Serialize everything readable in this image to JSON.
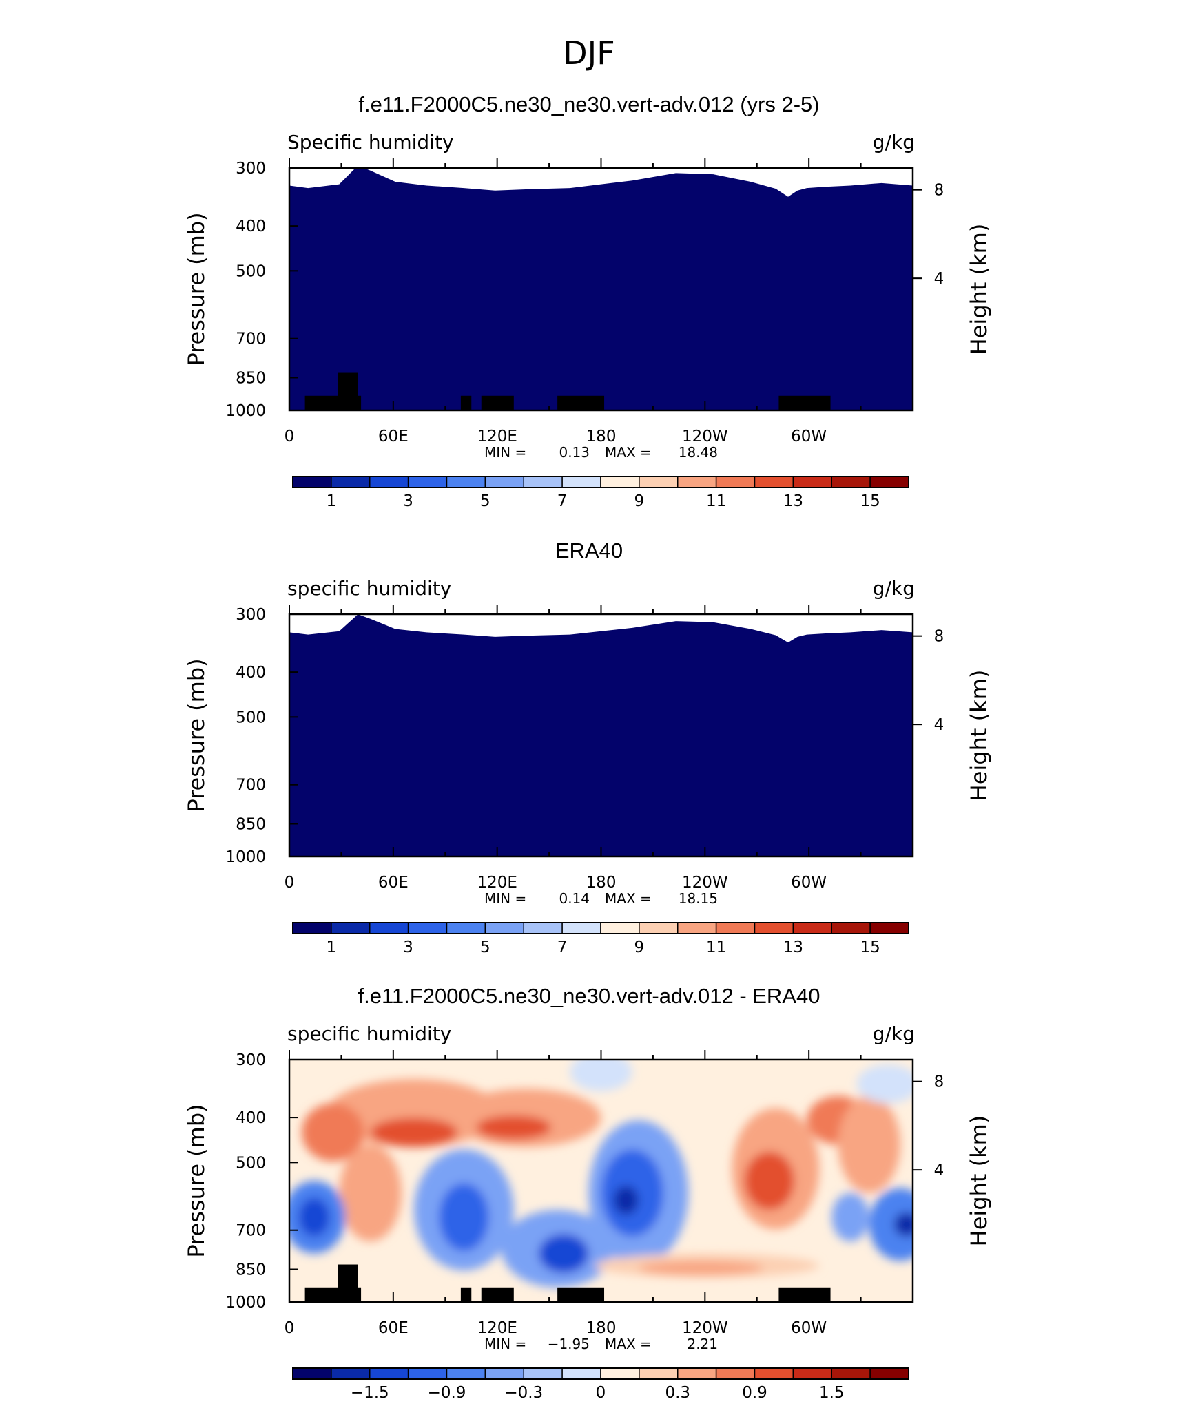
{
  "figure": {
    "title": "DJF"
  },
  "panels": [
    {
      "title": "f.e11.F2000C5.ne30_ne30.vert-adv.012 (yrs 2-5)",
      "variable": "Specific humidity",
      "units": "g/kg",
      "stats": {
        "min_label": "MIN =",
        "min": "0.13",
        "max_label": "MAX =",
        "max": "18.48"
      },
      "colorbar_labels": [
        "1",
        "3",
        "5",
        "7",
        "9",
        "11",
        "13",
        "15"
      ],
      "palette": "sequential",
      "terrain": true
    },
    {
      "title": "ERA40",
      "variable": "specific humidity",
      "units": "g/kg",
      "stats": {
        "min_label": "MIN =",
        "min": "0.14",
        "max_label": "MAX =",
        "max": "18.15"
      },
      "colorbar_labels": [
        "1",
        "3",
        "5",
        "7",
        "9",
        "11",
        "13",
        "15"
      ],
      "palette": "sequential",
      "terrain": false
    },
    {
      "title": "f.e11.F2000C5.ne30_ne30.vert-adv.012 - ERA40",
      "variable": "specific humidity",
      "units": "g/kg",
      "stats": {
        "min_label": "MIN =",
        "min": "−1.95",
        "max_label": "MAX =",
        "max": "2.21"
      },
      "colorbar_labels": [
        "−1.5",
        "−0.9",
        "−0.3",
        "0",
        "0.3",
        "0.9",
        "1.5"
      ],
      "palette": "diverging",
      "terrain": true
    }
  ],
  "axes": {
    "ylabel_left": "Pressure (mb)",
    "ylabel_right": "Height (km)",
    "pressure_ticks": [
      "300",
      "400",
      "500",
      "700",
      "850",
      "1000"
    ],
    "height_ticks": [
      "8",
      "4"
    ],
    "lon_ticks": [
      "0",
      "60E",
      "120E",
      "180",
      "120W",
      "60W"
    ]
  },
  "colors": {
    "sequential": [
      "#03036b",
      "#0a2aa8",
      "#1646d4",
      "#2d63e8",
      "#4c82f0",
      "#7aa2f5",
      "#a8c3f8",
      "#d3e2fb",
      "#fff0df",
      "#fcd0b3",
      "#f8a582",
      "#f07a56",
      "#e3502f",
      "#c92b18",
      "#a71609",
      "#860000"
    ],
    "diverging": [
      "#03036b",
      "#0a2aa8",
      "#1646d4",
      "#2d63e8",
      "#4c82f0",
      "#7aa2f5",
      "#a8c3f8",
      "#d3e2fb",
      "#fff0df",
      "#fcd0b3",
      "#f8a582",
      "#f07a56",
      "#e3502f",
      "#c92b18",
      "#a71609",
      "#860000"
    ],
    "terrain": "#000000"
  },
  "chart_data": [
    {
      "type": "heatmap",
      "title": "f.e11.F2000C5.ne30_ne30.vert-adv.012 (yrs 2-5)",
      "variable": "Specific humidity",
      "units": "g/kg",
      "xlabel": "",
      "ylabel": "Pressure (mb)",
      "ylabel_right": "Height (km)",
      "x_ticks": [
        "0",
        "60E",
        "120E",
        "180",
        "120W",
        "60W"
      ],
      "y_ticks": [
        300,
        400,
        500,
        700,
        850,
        1000
      ],
      "min": 0.13,
      "max": 18.48,
      "contour_levels": [
        1,
        2,
        3,
        4,
        5,
        6,
        7,
        8,
        9,
        10,
        11,
        12,
        13,
        14,
        15
      ],
      "colorbar_labels": [
        1,
        3,
        5,
        7,
        9,
        11,
        13,
        15
      ],
      "y_scale": "log-pressure",
      "grid": false
    },
    {
      "type": "heatmap",
      "title": "ERA40",
      "variable": "specific humidity",
      "units": "g/kg",
      "xlabel": "",
      "ylabel": "Pressure (mb)",
      "ylabel_right": "Height (km)",
      "x_ticks": [
        "0",
        "60E",
        "120E",
        "180",
        "120W",
        "60W"
      ],
      "y_ticks": [
        300,
        400,
        500,
        700,
        850,
        1000
      ],
      "min": 0.14,
      "max": 18.15,
      "contour_levels": [
        1,
        2,
        3,
        4,
        5,
        6,
        7,
        8,
        9,
        10,
        11,
        12,
        13,
        14,
        15
      ],
      "colorbar_labels": [
        1,
        3,
        5,
        7,
        9,
        11,
        13,
        15
      ],
      "y_scale": "log-pressure",
      "grid": false
    },
    {
      "type": "heatmap",
      "title": "f.e11.F2000C5.ne30_ne30.vert-adv.012 - ERA40",
      "variable": "specific humidity",
      "units": "g/kg",
      "xlabel": "",
      "ylabel": "Pressure (mb)",
      "ylabel_right": "Height (km)",
      "x_ticks": [
        "0",
        "60E",
        "120E",
        "180",
        "120W",
        "60W"
      ],
      "y_ticks": [
        300,
        400,
        500,
        700,
        850,
        1000
      ],
      "min": -1.95,
      "max": 2.21,
      "contour_levels": [
        -1.8,
        -1.5,
        -1.2,
        -0.9,
        -0.6,
        -0.3,
        -0.1,
        0,
        0.1,
        0.3,
        0.6,
        0.9,
        1.2,
        1.5,
        1.8
      ],
      "colorbar_labels": [
        -1.5,
        -0.9,
        -0.3,
        0,
        0.3,
        0.9,
        1.5
      ],
      "y_scale": "log-pressure",
      "grid": false
    }
  ]
}
